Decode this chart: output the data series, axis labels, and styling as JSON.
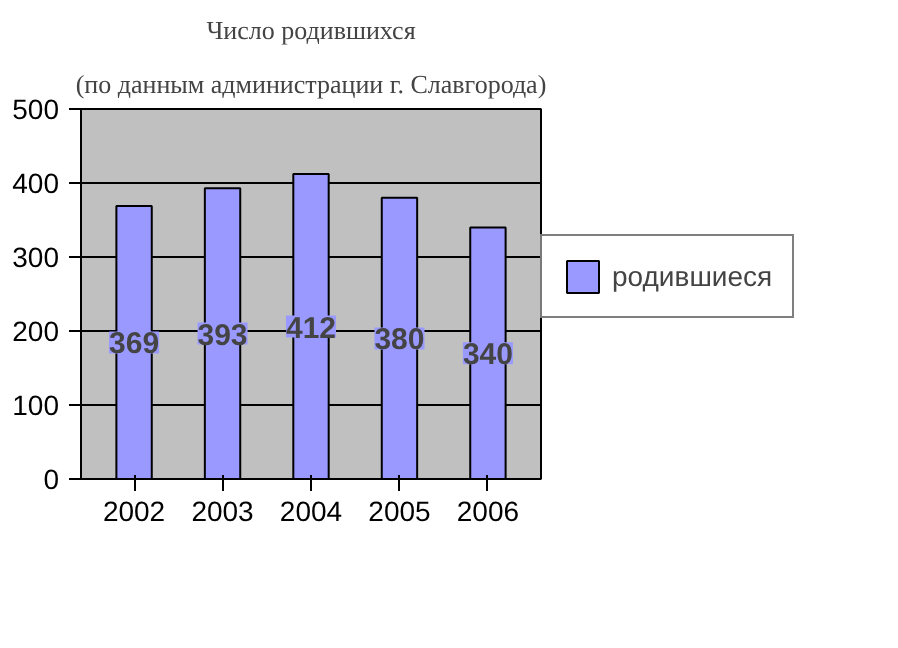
{
  "chart_data": {
    "type": "bar",
    "title": "Число родившихся",
    "subtitle": "(по данным администрации г. Славгорода)",
    "categories": [
      "2002",
      "2003",
      "2004",
      "2005",
      "2006"
    ],
    "series": [
      {
        "name": "родившиеся",
        "color": "#9999ff",
        "values": [
          369,
          393,
          412,
          380,
          340
        ]
      }
    ],
    "ylim": [
      0,
      500
    ],
    "yticks": [
      0,
      100,
      200,
      300,
      400,
      500
    ],
    "grid": "y",
    "legend": "right",
    "data_labels": true
  }
}
